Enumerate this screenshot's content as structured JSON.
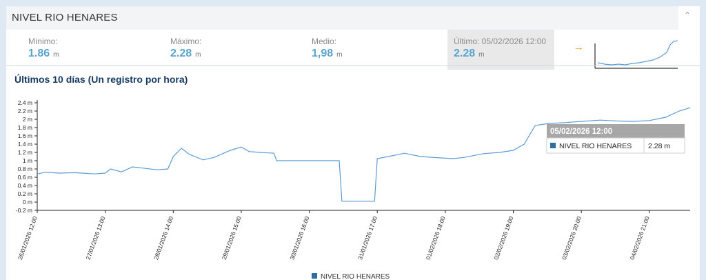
{
  "header": {
    "title": "NIVEL RIO HENARES"
  },
  "stats": {
    "min": {
      "label": "Mínimo:",
      "value": "1.86",
      "unit": "m"
    },
    "max": {
      "label": "Máximo:",
      "value": "2.28",
      "unit": "m"
    },
    "avg": {
      "label": "Medio:",
      "value": "1,98",
      "unit": "m"
    },
    "last": {
      "label": "Último: 05/02/2026 12:00",
      "value": "2.28",
      "unit": "m"
    }
  },
  "icons": {
    "arrow": "arrow-right-icon",
    "collapse": "chevron-up-icon"
  },
  "colors": {
    "series": "#5b9bd5",
    "legend": "#2f6f9f",
    "stat_value": "#5aa3cf",
    "arrow": "#e6a21c"
  },
  "chart_data": {
    "type": "line",
    "title": "Últimos 10 días (Un registro por hora)",
    "ylim": [
      -0.2,
      2.4
    ],
    "y_ticks": [
      "2.4 m",
      "2.2 m",
      "2 m",
      "1.8 m",
      "1.6 m",
      "1.4 m",
      "1.2 m",
      "1 m",
      "0.8 m",
      "0.6 m",
      "0.4 m",
      "0.2 m",
      "0 m",
      "-0.2 m"
    ],
    "x_ticks": [
      "26/01/2026 12:00",
      "27/01/2026 13:00",
      "28/01/2026 14:00",
      "29/01/2026 15:00",
      "30/01/2026 16:00",
      "31/01/2026 17:00",
      "01/02/2026 18:00",
      "02/02/2026 19:00",
      "03/02/2026 20:00",
      "04/02/2026 21:00"
    ],
    "series": [
      {
        "name": "NIVEL RIO HENARES",
        "x": [
          "26/01/2026 12:00",
          "26/01/2026 15:00",
          "26/01/2026 20:00",
          "27/01/2026 02:00",
          "27/01/2026 09:00",
          "27/01/2026 13:00",
          "27/01/2026 15:00",
          "27/01/2026 19:00",
          "27/01/2026 23:00",
          "28/01/2026 03:00",
          "28/01/2026 08:00",
          "28/01/2026 12:00",
          "28/01/2026 14:00",
          "28/01/2026 17:00",
          "28/01/2026 20:00",
          "29/01/2026 01:00",
          "29/01/2026 05:00",
          "29/01/2026 11:00",
          "29/01/2026 15:00",
          "29/01/2026 18:00",
          "29/01/2026 22:00",
          "30/01/2026 03:00",
          "30/01/2026 04:00",
          "30/01/2026 16:00",
          "31/01/2026 03:00",
          "31/01/2026 04:00",
          "31/01/2026 16:00",
          "31/01/2026 17:00",
          "31/01/2026 21:00",
          "01/02/2026 03:00",
          "01/02/2026 09:00",
          "01/02/2026 18:00",
          "01/02/2026 21:00",
          "02/02/2026 01:00",
          "02/02/2026 08:00",
          "02/02/2026 14:00",
          "02/02/2026 19:00",
          "02/02/2026 23:00",
          "03/02/2026 03:00",
          "03/02/2026 08:00",
          "03/02/2026 14:00",
          "03/02/2026 20:00",
          "04/02/2026 03:00",
          "04/02/2026 09:00",
          "04/02/2026 15:00",
          "04/02/2026 21:00",
          "05/02/2026 03:00",
          "05/02/2026 08:00",
          "05/02/2026 12:00"
        ],
        "values": [
          0.68,
          0.72,
          0.7,
          0.71,
          0.68,
          0.7,
          0.8,
          0.73,
          0.85,
          0.82,
          0.78,
          0.8,
          1.1,
          1.3,
          1.15,
          1.02,
          1.08,
          1.25,
          1.33,
          1.22,
          1.2,
          1.18,
          1.0,
          1.0,
          1.0,
          0.02,
          0.02,
          1.05,
          1.1,
          1.18,
          1.1,
          1.06,
          1.05,
          1.08,
          1.17,
          1.2,
          1.25,
          1.4,
          1.85,
          1.9,
          1.92,
          1.95,
          1.98,
          1.96,
          1.95,
          1.97,
          2.05,
          2.2,
          2.28
        ]
      }
    ],
    "legend": {
      "position": "bottom-center",
      "label": "NIVEL RIO HENARES"
    },
    "tooltip": {
      "title": "05/02/2026 12:00",
      "series": "NIVEL RIO HENARES",
      "value": "2.28 m"
    },
    "grid": false
  }
}
